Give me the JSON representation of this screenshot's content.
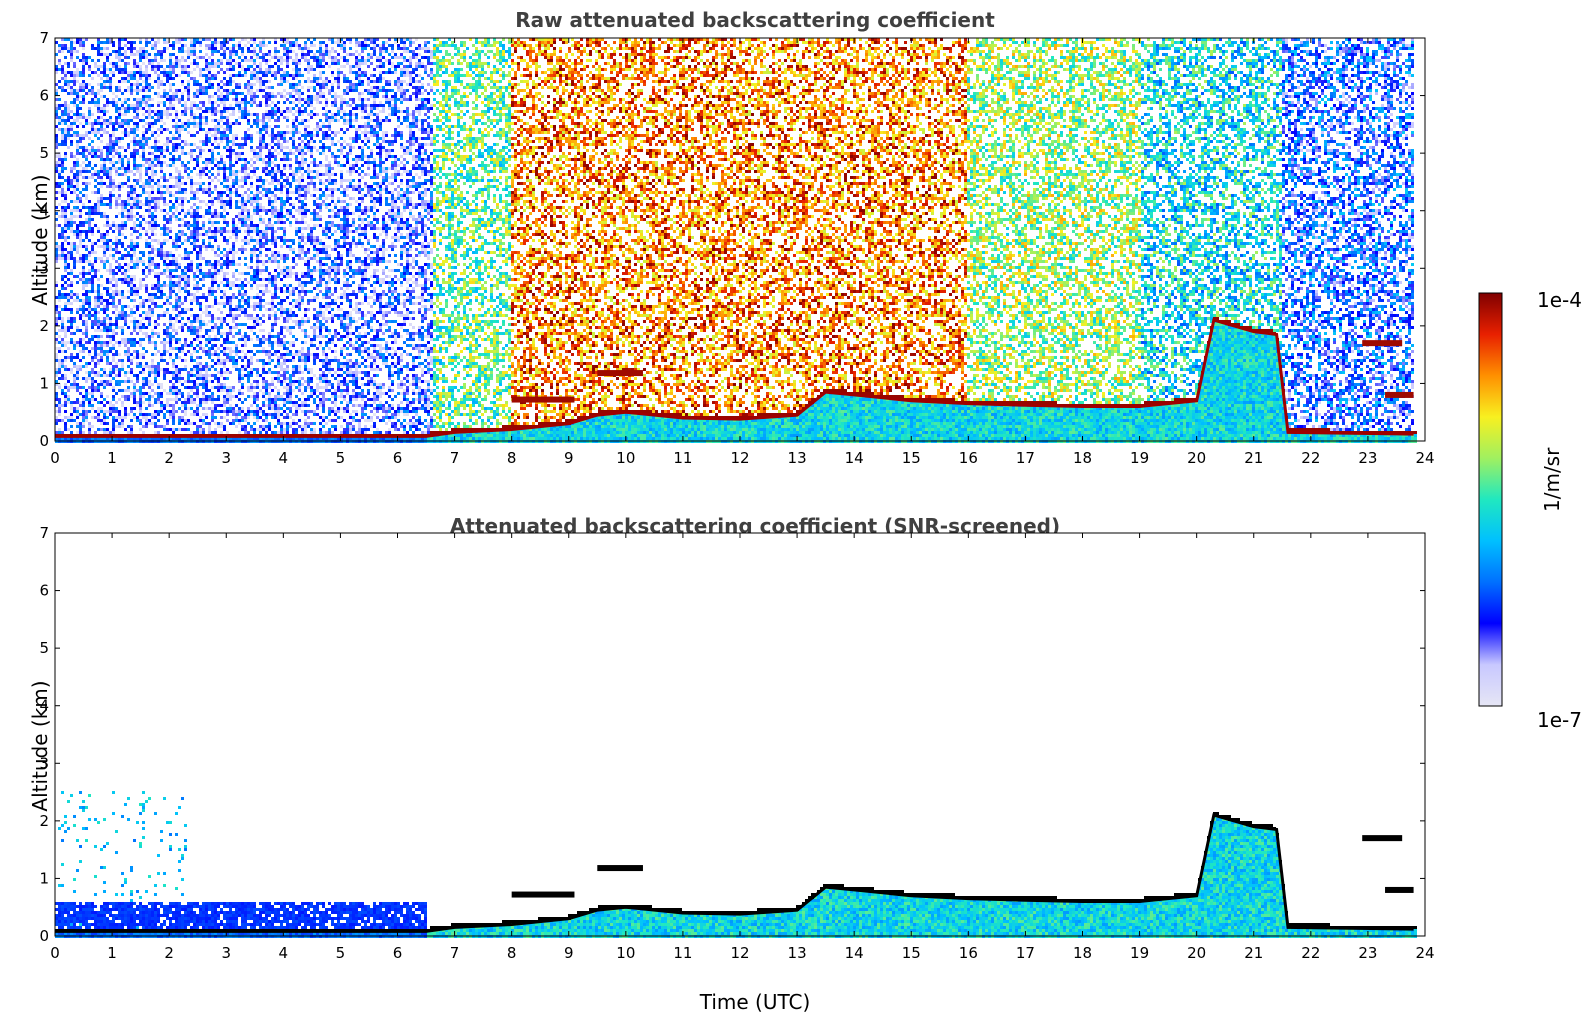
{
  "chart_data": [
    {
      "type": "heatmap",
      "title": "Raw attenuated backscattering coefficient",
      "xlabel": "",
      "ylabel": "Altitude (km)",
      "xlim": [
        0,
        24
      ],
      "ylim": [
        0,
        7
      ],
      "x_ticks": [
        0,
        1,
        2,
        3,
        4,
        5,
        6,
        7,
        8,
        9,
        10,
        11,
        12,
        13,
        14,
        15,
        16,
        17,
        18,
        19,
        20,
        21,
        22,
        23,
        24
      ],
      "y_ticks": [
        0,
        1,
        2,
        3,
        4,
        5,
        6,
        7
      ],
      "noise_level_by_hour": [
        {
          "from": 0,
          "to": 6.6,
          "level": 0.18
        },
        {
          "from": 6.6,
          "to": 8,
          "level": 0.55
        },
        {
          "from": 8,
          "to": 16,
          "level": 0.82
        },
        {
          "from": 16,
          "to": 19,
          "level": 0.6
        },
        {
          "from": 19,
          "to": 21.5,
          "level": 0.45
        },
        {
          "from": 21.5,
          "to": 23.8,
          "level": 0.25
        }
      ],
      "boundary_layer_top_km": [
        {
          "x": 0,
          "y": 0.08
        },
        {
          "x": 6.5,
          "y": 0.08
        },
        {
          "x": 7,
          "y": 0.15
        },
        {
          "x": 8,
          "y": 0.2
        },
        {
          "x": 9,
          "y": 0.3
        },
        {
          "x": 9.5,
          "y": 0.45
        },
        {
          "x": 10,
          "y": 0.5
        },
        {
          "x": 11,
          "y": 0.4
        },
        {
          "x": 12,
          "y": 0.38
        },
        {
          "x": 13,
          "y": 0.45
        },
        {
          "x": 13.5,
          "y": 0.85
        },
        {
          "x": 14,
          "y": 0.8
        },
        {
          "x": 15,
          "y": 0.7
        },
        {
          "x": 16,
          "y": 0.65
        },
        {
          "x": 17,
          "y": 0.62
        },
        {
          "x": 18,
          "y": 0.6
        },
        {
          "x": 19,
          "y": 0.6
        },
        {
          "x": 20,
          "y": 0.7
        },
        {
          "x": 20.3,
          "y": 2.1
        },
        {
          "x": 21,
          "y": 1.9
        },
        {
          "x": 21.4,
          "y": 1.85
        },
        {
          "x": 21.6,
          "y": 0.15
        },
        {
          "x": 23.8,
          "y": 0.12
        }
      ],
      "cloud_segments": [
        {
          "x0": 8.0,
          "x1": 9.1,
          "y": 0.72
        },
        {
          "x0": 9.5,
          "x1": 10.3,
          "y": 1.18
        },
        {
          "x0": 22.9,
          "x1": 23.6,
          "y": 1.7
        },
        {
          "x0": 23.3,
          "x1": 23.8,
          "y": 0.8
        }
      ]
    },
    {
      "type": "heatmap",
      "title": "Attenuated backscattering coefficient (SNR-screened)",
      "xlabel": "Time (UTC)",
      "ylabel": "Altitude (km)",
      "xlim": [
        0,
        24
      ],
      "ylim": [
        0,
        7
      ],
      "x_ticks": [
        0,
        1,
        2,
        3,
        4,
        5,
        6,
        7,
        8,
        9,
        10,
        11,
        12,
        13,
        14,
        15,
        16,
        17,
        18,
        19,
        20,
        21,
        22,
        23,
        24
      ],
      "y_ticks": [
        0,
        1,
        2,
        3,
        4,
        5,
        6,
        7
      ]
    }
  ],
  "colorbar": {
    "max_label": "1e-4",
    "min_label": "1e-7",
    "unit_label": "1/m/sr",
    "colors": [
      "#e6e6f5",
      "#c8c8ff",
      "#0000ff",
      "#0070ff",
      "#00c0ff",
      "#20e8c0",
      "#a0f060",
      "#f8f020",
      "#ff9000",
      "#e82000",
      "#800000"
    ]
  }
}
